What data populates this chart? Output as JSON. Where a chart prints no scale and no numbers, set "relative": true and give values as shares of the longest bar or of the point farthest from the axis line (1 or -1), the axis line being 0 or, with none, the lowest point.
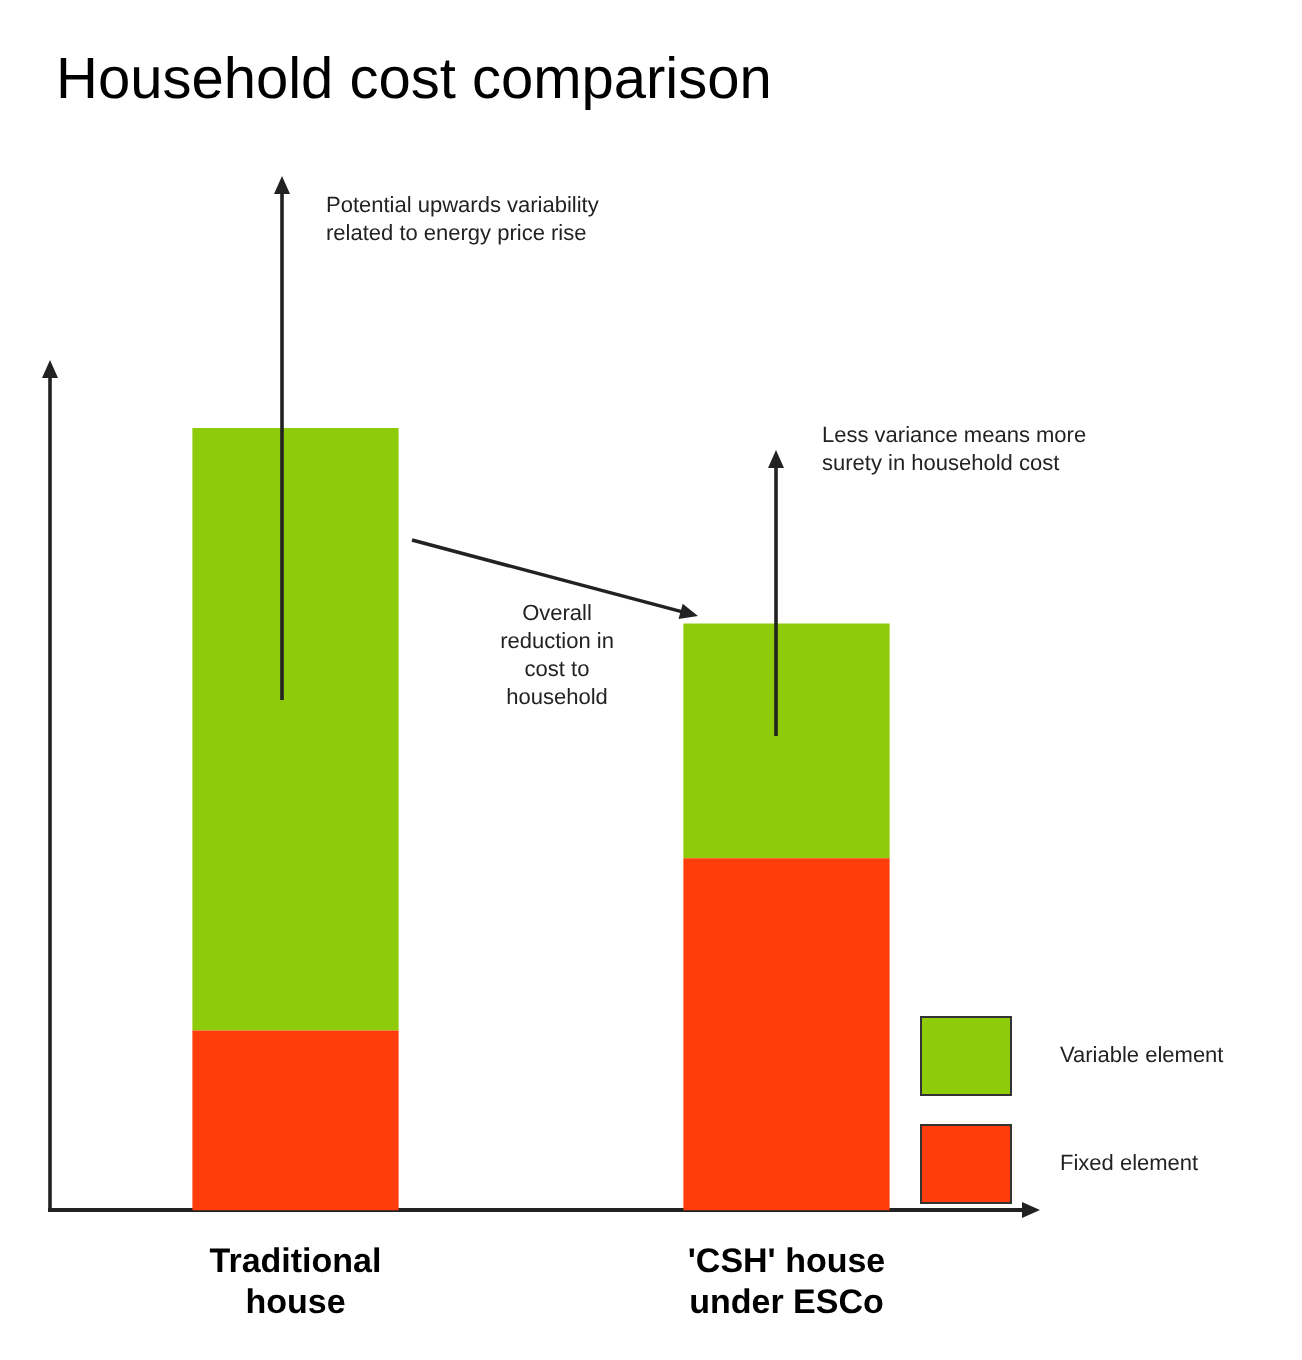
{
  "chart_data": {
    "type": "bar",
    "title": "Household cost comparison",
    "categories": [
      "Traditional house",
      "'CSH' house under ESCo"
    ],
    "stacked": true,
    "relative": true,
    "legend": "bottom right",
    "series": [
      {
        "name": "Fixed element",
        "color": "#ff3d0a",
        "values": [
          0.23,
          0.45
        ]
      },
      {
        "name": "Variable element",
        "color": "#8ecb0b",
        "values": [
          0.77,
          0.3
        ]
      }
    ],
    "annotations": [
      "Potential upwards variability related to energy price rise",
      "Less variance means more surety in household cost",
      "Overall reduction in cost to household"
    ]
  }
}
